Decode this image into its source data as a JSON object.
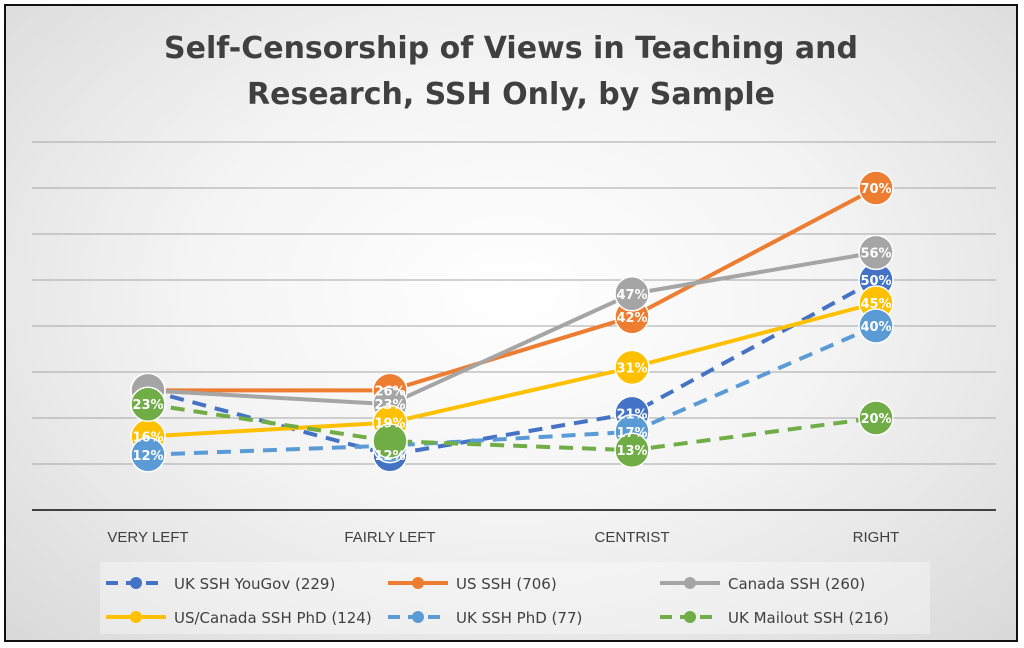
{
  "chart_data": {
    "type": "line",
    "title": "Self-Censorship of Views in Teaching and Research, SSH Only, by Sample",
    "title_lines": [
      "Self-Censorship of Views in Teaching and",
      "Research, SSH Only, by Sample"
    ],
    "categories": [
      "VERY LEFT",
      "FAIRLY LEFT",
      "CENTRIST",
      "RIGHT"
    ],
    "ylim": [
      0,
      80
    ],
    "grid": true,
    "legend_position": "bottom",
    "series": [
      {
        "name": "UK SSH YouGov (229)",
        "values": [
          26,
          12,
          21,
          50
        ],
        "labels": [
          "",
          "12%",
          "21%",
          "50%"
        ],
        "color": "#4472c4",
        "dashed": true
      },
      {
        "name": "US SSH (706)",
        "values": [
          26,
          26,
          42,
          70
        ],
        "labels": [
          "",
          "26%",
          "42%",
          "70%"
        ],
        "color": "#ed7d31",
        "dashed": false
      },
      {
        "name": "Canada SSH (260)",
        "values": [
          26,
          23,
          47,
          56
        ],
        "labels": [
          "",
          "23%",
          "47%",
          "56%"
        ],
        "color": "#a5a5a5",
        "dashed": false
      },
      {
        "name": "US/Canada SSH PhD (124)",
        "values": [
          16,
          19,
          31,
          45
        ],
        "labels": [
          "16%",
          "19%",
          "31%",
          "45%"
        ],
        "color": "#ffc000",
        "dashed": false
      },
      {
        "name": "UK  SSH PhD (77)",
        "values": [
          12,
          14,
          17,
          40
        ],
        "labels": [
          "12%",
          "",
          "17%",
          "40%"
        ],
        "color": "#5b9bd5",
        "dashed": true
      },
      {
        "name": "UK Mailout SSH (216)",
        "values": [
          23,
          15,
          13,
          20
        ],
        "labels": [
          "23%",
          "",
          "13%",
          "20%"
        ],
        "color": "#70ad47",
        "dashed": true
      }
    ]
  }
}
